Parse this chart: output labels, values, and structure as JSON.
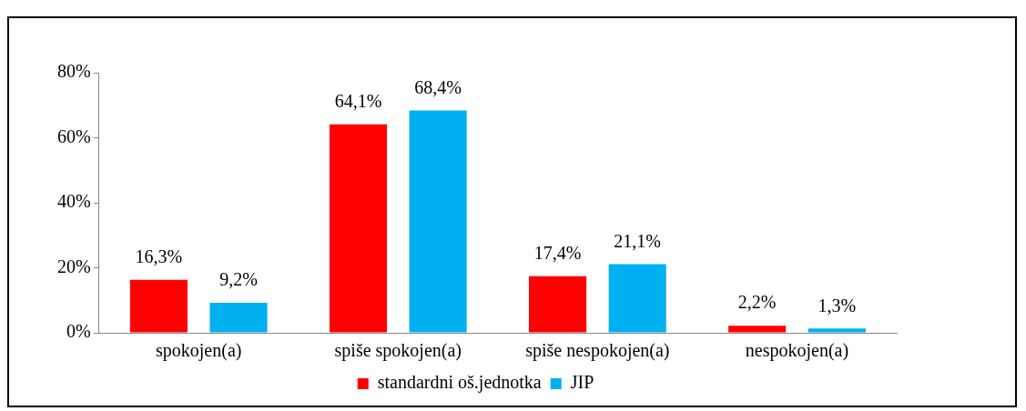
{
  "chart_data": {
    "type": "bar",
    "categories": [
      "spokojen(a)",
      "spiše spokojen(a)",
      "spiše nespokojen(a)",
      "nespokojen(a)"
    ],
    "series": [
      {
        "name": "standardni oš.jednotka",
        "color": "#ff0000",
        "values": [
          16.3,
          64.1,
          17.4,
          2.2
        ],
        "value_labels": [
          "16,3%",
          "64,1%",
          "17,4%",
          "2,2%"
        ]
      },
      {
        "name": "JIP",
        "color": "#00b0f0",
        "values": [
          9.2,
          68.4,
          21.1,
          1.3
        ],
        "value_labels": [
          "9,2%",
          "68,4%",
          "21,1%",
          "1,3%"
        ]
      }
    ],
    "ylim": [
      0,
      80
    ],
    "yticks": [
      {
        "value": 0,
        "label": "0%"
      },
      {
        "value": 20,
        "label": "20%"
      },
      {
        "value": 40,
        "label": "40%"
      },
      {
        "value": 60,
        "label": "60%"
      },
      {
        "value": 80,
        "label": "80%"
      }
    ],
    "grid": false,
    "legend": "bottom"
  }
}
